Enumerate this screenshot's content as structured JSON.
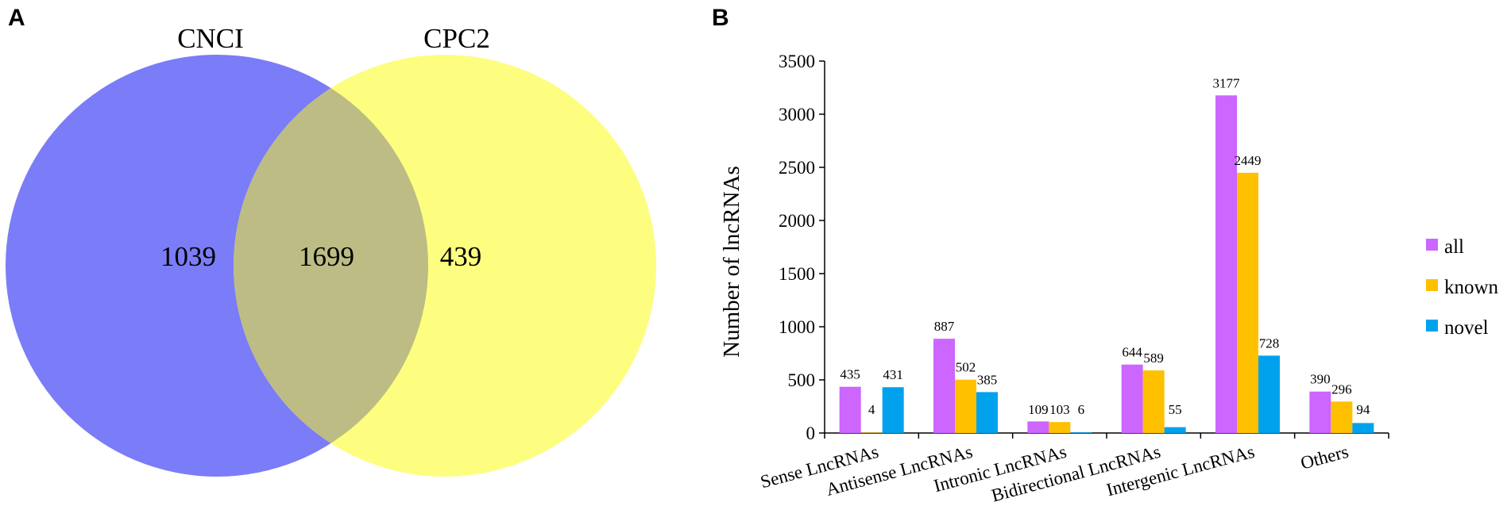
{
  "panels": {
    "a": {
      "letter": "A"
    },
    "b": {
      "letter": "B"
    }
  },
  "venn": {
    "left_set": {
      "label": "CNCI",
      "count": "1039",
      "color": "#7b7cf8"
    },
    "right_set": {
      "label": "CPC2",
      "count": "439",
      "color": "#fdfe7f"
    },
    "overlap": {
      "count": "1699",
      "color": "#bdbc84"
    }
  },
  "chart_data": {
    "type": "bar",
    "title": "",
    "xlabel": "",
    "ylabel": "Number of lncRNAs",
    "ylim": [
      0,
      3500
    ],
    "yticks": [
      "0",
      "500",
      "1000",
      "1500",
      "2000",
      "2500",
      "3000",
      "3500"
    ],
    "grid": false,
    "legend_position": "right",
    "categories": [
      "Sense LncRNAs",
      "Antisense LncRNAs",
      "Intronic LncRNAs",
      "Bidirectional LncRNAs",
      "Intergenic LncRNAs",
      "Others"
    ],
    "series": [
      {
        "name": "all",
        "color": "#cc66ff",
        "values": [
          435,
          887,
          109,
          644,
          3177,
          390
        ]
      },
      {
        "name": "known",
        "color": "#ffc000",
        "values": [
          4,
          502,
          103,
          589,
          2449,
          296
        ]
      },
      {
        "name": "novel",
        "color": "#00a2ed",
        "values": [
          431,
          385,
          6,
          55,
          728,
          94
        ]
      }
    ]
  }
}
